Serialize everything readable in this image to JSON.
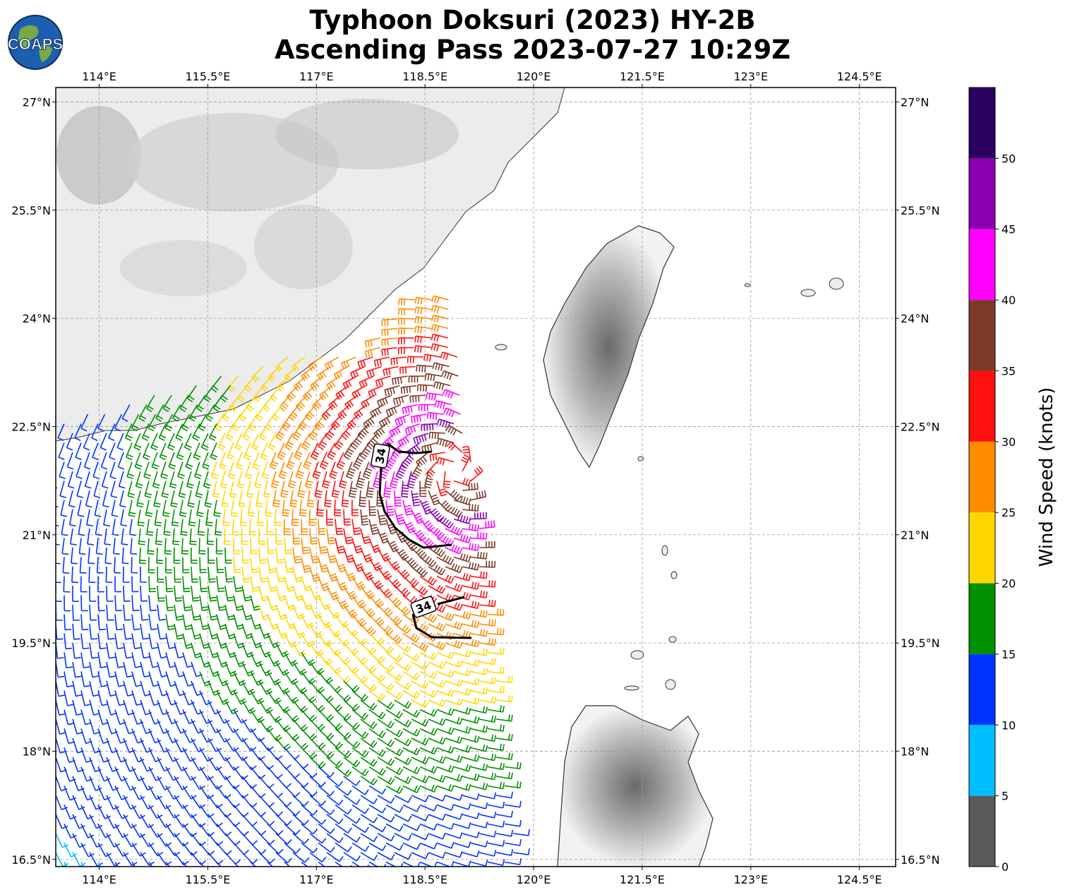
{
  "title": "Typhoon Doksuri (2023) HY-2B",
  "subtitle": "Ascending Pass 2023-07-27 10:29Z",
  "logo_text": "COAPS",
  "map": {
    "lon_range": [
      113.4,
      125.0
    ],
    "lat_range": [
      16.4,
      27.2
    ],
    "lon_ticks": [
      "114°E",
      "115.5°E",
      "117°E",
      "118.5°E",
      "120°E",
      "121.5°E",
      "123°E",
      "124.5°E"
    ],
    "lat_ticks": [
      "27°N",
      "25.5°N",
      "24°N",
      "22.5°N",
      "21°N",
      "19.5°N",
      "18°N",
      "16.5°N"
    ],
    "lon_tick_values": [
      114,
      115.5,
      117,
      118.5,
      120,
      121.5,
      123,
      124.5
    ],
    "lat_tick_values": [
      27,
      25.5,
      24,
      22.5,
      21,
      19.5,
      18,
      16.5
    ],
    "grid": true,
    "radius_contour_label": "34",
    "radius_contour_labels": [
      "34",
      "34"
    ]
  },
  "colorbar": {
    "label": "Wind Speed (knots)",
    "bounds": [
      0,
      5,
      10,
      15,
      20,
      25,
      30,
      35,
      40,
      45,
      50
    ],
    "tick_labels": [
      "0",
      "5",
      "10",
      "15",
      "20",
      "25",
      "30",
      "35",
      "40",
      "45",
      "50"
    ],
    "colors": [
      "#595959",
      "#00bfff",
      "#0033ff",
      "#009000",
      "#ffd700",
      "#ff8c00",
      "#ff1010",
      "#7b3a28",
      "#ff00ff",
      "#8800b0",
      "#2a0060"
    ]
  },
  "center": {
    "lon": 118.9,
    "lat": 21.9
  }
}
